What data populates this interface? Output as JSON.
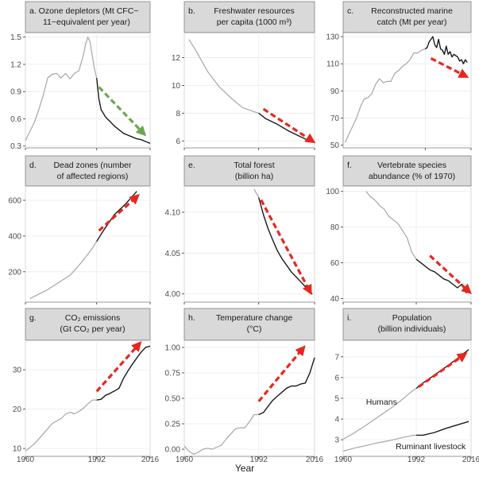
{
  "figure": {
    "xlabel": "Year",
    "colors": {
      "historical": "#a6a6a6",
      "recent": "#1a1a1a",
      "arrow_red": "#e8261f",
      "arrow_green": "#6aa84f"
    }
  },
  "chart_data": [
    {
      "type": "line",
      "title_lines": [
        "a. Ozone depletors (Mt CFC−",
        "11−equivalent per year)"
      ],
      "xlim": [
        1960,
        2016
      ],
      "ylim": [
        0.28,
        1.55
      ],
      "xticks": [
        1960,
        1992,
        2016
      ],
      "yticks": [
        0.3,
        0.6,
        0.9,
        1.2,
        1.5
      ],
      "ytick_labels": [
        "0.3",
        "0.6",
        "0.9",
        "1.2",
        "1.5"
      ],
      "series": [
        {
          "role": "historical",
          "x": [
            1960,
            1962,
            1964,
            1966,
            1968,
            1970,
            1972,
            1974,
            1976,
            1978,
            1980,
            1982,
            1984,
            1986,
            1987,
            1988,
            1989,
            1990,
            1991,
            1992
          ],
          "y": [
            0.36,
            0.46,
            0.56,
            0.7,
            0.86,
            1.05,
            1.09,
            1.1,
            1.05,
            1.1,
            1.04,
            1.1,
            1.13,
            1.3,
            1.42,
            1.5,
            1.45,
            1.3,
            1.15,
            1.05
          ]
        },
        {
          "role": "recent",
          "x": [
            1992,
            1993,
            1994,
            1996,
            1998,
            2000,
            2002,
            2004,
            2006,
            2008,
            2010,
            2012,
            2014,
            2016
          ],
          "y": [
            1.05,
            0.82,
            0.7,
            0.62,
            0.57,
            0.52,
            0.48,
            0.44,
            0.42,
            0.4,
            0.38,
            0.37,
            0.35,
            0.33
          ]
        }
      ],
      "arrow": {
        "color": "green",
        "from": [
          1993,
          0.95
        ],
        "to": [
          2013,
          0.44
        ]
      }
    },
    {
      "type": "line",
      "title_lines": [
        "b.",
        "Freshwater resources",
        "per capita (1000 m³)"
      ],
      "xlim": [
        1960,
        2016
      ],
      "ylim": [
        5.5,
        13.8
      ],
      "xticks": [
        1960,
        1992,
        2016
      ],
      "yticks": [
        6,
        8,
        10,
        12
      ],
      "ytick_labels": [
        "6",
        "8",
        "10",
        "12"
      ],
      "series": [
        {
          "role": "historical",
          "x": [
            1962,
            1965,
            1970,
            1975,
            1980,
            1985,
            1990,
            1992
          ],
          "y": [
            13.3,
            12.5,
            11.0,
            9.9,
            9.1,
            8.4,
            8.1,
            8.0
          ]
        },
        {
          "role": "recent",
          "x": [
            1992,
            1995,
            2000,
            2005,
            2010,
            2015
          ],
          "y": [
            8.0,
            7.6,
            7.2,
            6.7,
            6.3,
            5.9
          ]
        }
      ],
      "arrow": {
        "color": "red",
        "from": [
          1994,
          8.3
        ],
        "to": [
          2015,
          6.0
        ]
      }
    },
    {
      "type": "line",
      "title_lines": [
        "c.",
        "Reconstructed marine",
        "catch (Mt per year)"
      ],
      "xlim": [
        1949,
        2016
      ],
      "ylim": [
        48,
        133
      ],
      "xticks": [
        1992,
        2016
      ],
      "yticks": [
        50,
        70,
        90,
        110,
        130
      ],
      "ytick_labels": [
        "50",
        "70",
        "90",
        "110",
        "130"
      ],
      "series": [
        {
          "role": "historical",
          "x": [
            1950,
            1952,
            1954,
            1956,
            1958,
            1960,
            1962,
            1964,
            1966,
            1968,
            1970,
            1972,
            1974,
            1976,
            1978,
            1980,
            1982,
            1984,
            1986,
            1988,
            1990,
            1992
          ],
          "y": [
            52,
            58,
            64,
            70,
            78,
            84,
            85,
            88,
            95,
            99,
            96,
            97,
            97,
            103,
            105,
            108,
            110,
            113,
            118,
            118,
            120,
            121
          ]
        },
        {
          "role": "recent",
          "x": [
            1992,
            1993,
            1994,
            1995,
            1996,
            1997,
            1998,
            1999,
            2000,
            2001,
            2002,
            2003,
            2004,
            2005,
            2006,
            2007,
            2008,
            2009,
            2010,
            2011,
            2012,
            2013,
            2014
          ],
          "y": [
            121,
            122,
            126,
            128,
            130,
            124,
            122,
            128,
            121,
            120,
            117,
            123,
            117,
            119,
            115,
            117,
            116,
            115,
            112,
            113,
            110,
            113,
            111
          ]
        }
      ],
      "arrow": {
        "color": "red",
        "from": [
          1995,
          114
        ],
        "to": [
          2013,
          101
        ]
      }
    },
    {
      "type": "line",
      "title_lines": [
        "d.",
        "Dead zones (number",
        "of affected regions)"
      ],
      "xlim": [
        1960,
        2016
      ],
      "ylim": [
        30,
        680
      ],
      "xticks": [
        1960,
        1992,
        2016
      ],
      "yticks": [
        200,
        400,
        600
      ],
      "ytick_labels": [
        "200",
        "400",
        "600"
      ],
      "series": [
        {
          "role": "historical",
          "x": [
            1962,
            1970,
            1980,
            1985,
            1990,
            1992
          ],
          "y": [
            49,
            100,
            180,
            250,
            330,
            370
          ]
        },
        {
          "role": "recent",
          "x": [
            1992,
            1995,
            2000,
            2005,
            2010
          ],
          "y": [
            370,
            430,
            520,
            580,
            650
          ]
        }
      ],
      "arrow": {
        "color": "red",
        "from": [
          1993,
          430
        ],
        "to": [
          2010,
          620
        ]
      }
    },
    {
      "type": "line",
      "title_lines": [
        "e.",
        "Total forest",
        "(billion ha)"
      ],
      "xlim": [
        1960,
        2016
      ],
      "ylim": [
        3.99,
        4.132
      ],
      "xticks": [
        1960,
        1992,
        2016
      ],
      "yticks": [
        4.0,
        4.05,
        4.1
      ],
      "ytick_labels": [
        "4.00",
        "4.05",
        "4.10"
      ],
      "series": [
        {
          "role": "historical",
          "x": [
            1990,
            1992
          ],
          "y": [
            4.128,
            4.118
          ]
        },
        {
          "role": "recent",
          "x": [
            1992,
            1994,
            1996,
            1998,
            2000,
            2002,
            2004,
            2006,
            2008,
            2010,
            2012,
            2014,
            2015
          ],
          "y": [
            4.118,
            4.097,
            4.08,
            4.066,
            4.053,
            4.043,
            4.035,
            4.027,
            4.021,
            4.015,
            4.009,
            4.003,
            4.0
          ]
        }
      ],
      "arrow": {
        "color": "red",
        "from": [
          1993,
          4.115
        ],
        "to": [
          2014,
          4.003
        ]
      }
    },
    {
      "type": "line",
      "title_lines": [
        "f.",
        "Vertebrate species",
        "abundance (% of 1970)"
      ],
      "xlim": [
        1960,
        2016
      ],
      "ylim": [
        38,
        103
      ],
      "xticks": [
        1960,
        1992,
        2016
      ],
      "yticks": [
        40,
        60,
        80,
        100
      ],
      "ytick_labels": [
        "40",
        "60",
        "80",
        "100"
      ],
      "series": [
        {
          "role": "historical",
          "x": [
            1970,
            1972,
            1974,
            1976,
            1978,
            1980,
            1982,
            1984,
            1986,
            1988,
            1990,
            1992
          ],
          "y": [
            100,
            97,
            95,
            92,
            90,
            86,
            84,
            82,
            78,
            74,
            66,
            62
          ]
        },
        {
          "role": "recent",
          "x": [
            1992,
            1994,
            1996,
            1998,
            2000,
            2002,
            2004,
            2006,
            2008,
            2010,
            2012,
            2013,
            2014
          ],
          "y": [
            62,
            60,
            58,
            56,
            55,
            53,
            51,
            50,
            48,
            46,
            48,
            45,
            43
          ]
        }
      ],
      "arrow": {
        "color": "red",
        "from": [
          1998,
          64
        ],
        "to": [
          2015,
          44
        ]
      }
    },
    {
      "type": "line",
      "title_lines": [
        "g.",
        "CO₂ emissions",
        "(Gt CO₂ per year)"
      ],
      "xlim": [
        1960,
        2016
      ],
      "ylim": [
        8,
        37.5
      ],
      "xticks": [
        1960,
        1992,
        2016
      ],
      "yticks": [
        10,
        20,
        30
      ],
      "ytick_labels": [
        "10",
        "20",
        "30"
      ],
      "series": [
        {
          "role": "historical",
          "x": [
            1960,
            1962,
            1964,
            1966,
            1968,
            1970,
            1972,
            1974,
            1976,
            1978,
            1980,
            1982,
            1984,
            1986,
            1988,
            1990,
            1992
          ],
          "y": [
            9.4,
            10.2,
            11.2,
            12.4,
            13.7,
            15.0,
            16.3,
            17.0,
            17.6,
            18.7,
            19.2,
            18.8,
            19.4,
            20.2,
            21.3,
            22.3,
            22.3
          ]
        },
        {
          "role": "recent",
          "x": [
            1992,
            1994,
            1996,
            1998,
            2000,
            2002,
            2004,
            2006,
            2008,
            2010,
            2012,
            2014,
            2016
          ],
          "y": [
            22.3,
            22.5,
            23.5,
            24.0,
            24.6,
            25.3,
            27.8,
            29.7,
            31.4,
            33.0,
            34.5,
            35.7,
            36.0
          ]
        }
      ],
      "arrow": {
        "color": "red",
        "from": [
          1992,
          24.5
        ],
        "to": [
          2011,
          36.5
        ]
      }
    },
    {
      "type": "line",
      "title_lines": [
        "h.",
        "Temperature change",
        "(°C)"
      ],
      "xlim": [
        1960,
        2016
      ],
      "ylim": [
        -0.07,
        1.07
      ],
      "xticks": [
        1960,
        1992,
        2016
      ],
      "yticks": [
        0.0,
        0.25,
        0.5,
        0.75,
        1.0
      ],
      "ytick_labels": [
        "0.00",
        "0.25",
        "0.50",
        "0.75",
        "1.00"
      ],
      "series": [
        {
          "role": "historical",
          "x": [
            1960,
            1962,
            1964,
            1966,
            1968,
            1970,
            1972,
            1974,
            1976,
            1978,
            1980,
            1982,
            1984,
            1986,
            1988,
            1990,
            1992
          ],
          "y": [
            0.03,
            -0.02,
            -0.05,
            -0.03,
            0.0,
            0.01,
            0.0,
            0.02,
            0.04,
            0.1,
            0.15,
            0.2,
            0.21,
            0.21,
            0.27,
            0.34,
            0.34
          ]
        },
        {
          "role": "recent",
          "x": [
            1992,
            1994,
            1996,
            1998,
            2000,
            2002,
            2004,
            2006,
            2008,
            2010,
            2012,
            2014,
            2016
          ],
          "y": [
            0.34,
            0.36,
            0.42,
            0.48,
            0.52,
            0.56,
            0.6,
            0.62,
            0.62,
            0.64,
            0.65,
            0.75,
            0.9
          ]
        }
      ],
      "arrow": {
        "color": "red",
        "from": [
          1992,
          0.47
        ],
        "to": [
          2011,
          0.99
        ]
      }
    },
    {
      "type": "line",
      "title_lines": [
        "i.",
        "Population",
        "(billion individuals)"
      ],
      "xlim": [
        1960,
        2016
      ],
      "ylim": [
        2.2,
        7.8
      ],
      "xticks": [
        1960,
        1992,
        2016
      ],
      "yticks": [
        3,
        4,
        5,
        6,
        7
      ],
      "ytick_labels": [
        "3",
        "4",
        "5",
        "6",
        "7"
      ],
      "series": [
        {
          "role": "historical",
          "name": "Humans",
          "x": [
            1960,
            1965,
            1970,
            1975,
            1980,
            1985,
            1990,
            1992
          ],
          "y": [
            3.03,
            3.34,
            3.7,
            4.08,
            4.45,
            4.87,
            5.33,
            5.48
          ]
        },
        {
          "role": "recent",
          "name": "Humans",
          "x": [
            1992,
            1995,
            2000,
            2005,
            2010,
            2015
          ],
          "y": [
            5.48,
            5.74,
            6.12,
            6.51,
            6.92,
            7.35
          ]
        },
        {
          "role": "historical",
          "name": "Ruminant livestock",
          "x": [
            1960,
            1965,
            1970,
            1975,
            1980,
            1985,
            1990,
            1992
          ],
          "y": [
            2.45,
            2.6,
            2.72,
            2.85,
            2.95,
            3.08,
            3.2,
            3.22
          ]
        },
        {
          "role": "recent",
          "name": "Ruminant livestock",
          "x": [
            1992,
            1995,
            2000,
            2005,
            2010,
            2015
          ],
          "y": [
            3.22,
            3.22,
            3.35,
            3.55,
            3.72,
            3.88
          ]
        }
      ],
      "arrow": {
        "color": "red",
        "from": [
          1993,
          5.55
        ],
        "to": [
          2013,
          7.1
        ]
      }
    }
  ]
}
